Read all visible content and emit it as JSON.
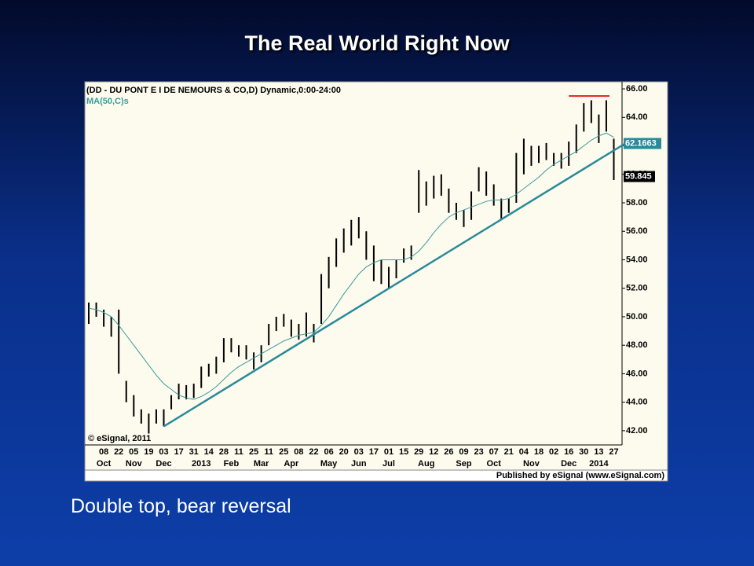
{
  "slide_title": "The Real World Right Now",
  "caption": "Double top, bear reversal",
  "chart_data": {
    "type": "ohlc",
    "title": "(DD - DU PONT E I DE NEMOURS & CO,D) Dynamic,0:00-24:00",
    "ma": {
      "name": "MA(50,C)s",
      "color": "#3a9a9a",
      "values": [
        50.6,
        50.5,
        50.3,
        50,
        49.4,
        48.7,
        48,
        47.3,
        46.6,
        45.9,
        45.3,
        44.9,
        44.5,
        44.3,
        44.2,
        44.4,
        44.7,
        45.1,
        45.6,
        46.1,
        46.5,
        46.8,
        47.1,
        47.4,
        47.7,
        48,
        48.3,
        48.5,
        48.7,
        48.8,
        48.9,
        49.4,
        50,
        50.8,
        51.6,
        52.3,
        53,
        53.5,
        53.8,
        54,
        54,
        54,
        54,
        54.2,
        54.6,
        55.2,
        55.9,
        56.5,
        57,
        57.3,
        57.5,
        57.7,
        57.9,
        58.1,
        58.2,
        58.2,
        58.3,
        58.6,
        59,
        59.4,
        59.8,
        60.3,
        60.7,
        61,
        61.3,
        61.6,
        62,
        62.4,
        62.7,
        62.9,
        62.6
      ]
    },
    "categories": [
      null,
      null,
      "08",
      null,
      "22",
      null,
      "05",
      null,
      "19",
      null,
      "03",
      null,
      "17",
      null,
      "31",
      null,
      "14",
      null,
      "28",
      null,
      "11",
      null,
      "25",
      null,
      "11",
      null,
      "25",
      null,
      "08",
      null,
      "22",
      null,
      "06",
      null,
      "20",
      null,
      "03",
      null,
      "17",
      null,
      "01",
      null,
      "15",
      null,
      "29",
      null,
      "12",
      null,
      "26",
      null,
      "09",
      null,
      "23",
      null,
      "07",
      null,
      "21",
      null,
      "04",
      null,
      "18",
      null,
      "02",
      null,
      "16",
      null,
      "30",
      null,
      "13",
      null,
      "27"
    ],
    "months": [
      null,
      null,
      "Oct",
      null,
      null,
      null,
      "Nov",
      null,
      null,
      null,
      "Dec",
      null,
      null,
      null,
      null,
      "2013",
      null,
      null,
      null,
      "Feb",
      null,
      null,
      null,
      "Mar",
      null,
      null,
      null,
      "Apr",
      null,
      null,
      null,
      null,
      "May",
      null,
      null,
      null,
      "Jun",
      null,
      null,
      null,
      "Jul",
      null,
      null,
      null,
      null,
      "Aug",
      null,
      null,
      null,
      null,
      "Sep",
      null,
      null,
      null,
      "Oct",
      null,
      null,
      null,
      null,
      "Nov",
      null,
      null,
      null,
      null,
      "Dec",
      null,
      null,
      null,
      "2014",
      null,
      null,
      null
    ],
    "high": [
      51,
      51,
      50.5,
      50,
      50.5,
      45.5,
      44.5,
      43.5,
      43.2,
      43.5,
      43.5,
      44.5,
      45.3,
      45.2,
      45.3,
      46.5,
      46.7,
      47.2,
      48.5,
      48.5,
      48,
      48,
      47.5,
      48,
      49.5,
      50,
      50.2,
      49.8,
      49.5,
      50.3,
      49.5,
      53,
      54.2,
      55.5,
      56.2,
      56.8,
      57,
      56,
      55,
      54,
      53.5,
      54,
      54.8,
      55,
      60.3,
      59.5,
      59.9,
      60,
      59,
      58,
      57.5,
      58.8,
      60.5,
      60.2,
      59.3,
      58.3,
      58.3,
      61.5,
      62.5,
      62,
      62,
      62.2,
      61.5,
      61.5,
      62.3,
      63.5,
      65,
      65.2,
      64.2,
      65.2,
      62.5
    ],
    "low": [
      49.5,
      50,
      49.3,
      48.6,
      46,
      44,
      43,
      42.5,
      41.8,
      42.5,
      42.3,
      43.5,
      44.2,
      44.2,
      44.3,
      45,
      45.8,
      46,
      46.8,
      47.5,
      47.2,
      47,
      46.3,
      46.8,
      48,
      49,
      49.3,
      48.6,
      48.4,
      48.6,
      48.2,
      49.5,
      52,
      53.5,
      54.5,
      55,
      55.5,
      54,
      52.5,
      52.3,
      52,
      52.7,
      53.8,
      54,
      57.3,
      57.8,
      58.3,
      58.5,
      57.3,
      56.8,
      56.3,
      56.8,
      58.8,
      58.5,
      57.8,
      56.8,
      57.3,
      58,
      60,
      60.6,
      60.8,
      61,
      60.6,
      60.4,
      60.6,
      61.5,
      63,
      63.6,
      62.2,
      63,
      59.6
    ],
    "bar_color": "#000000",
    "trend_value": 62.1663,
    "last_price": 59.845,
    "resistance": 65.5,
    "ylim": [
      41,
      66.5
    ],
    "yticks": [
      {
        "value": 42,
        "label": "42.00"
      },
      {
        "value": 44,
        "label": "44.00"
      },
      {
        "value": 46,
        "label": "46.00"
      },
      {
        "value": 48,
        "label": "48.00"
      },
      {
        "value": 50,
        "label": "50.00"
      },
      {
        "value": 52,
        "label": "52.00"
      },
      {
        "value": 54,
        "label": "54.00"
      },
      {
        "value": 56,
        "label": "56.00"
      },
      {
        "value": 58,
        "label": "58.00"
      },
      {
        "value": 60,
        "label": "60.00"
      },
      {
        "value": 62,
        "label": "62.00"
      },
      {
        "value": 64,
        "label": "64.00"
      },
      {
        "value": 66,
        "label": "66.00"
      }
    ],
    "copyright": "© eSignal, 2011",
    "publisher": "Published by eSignal (www.eSignal.com)"
  }
}
